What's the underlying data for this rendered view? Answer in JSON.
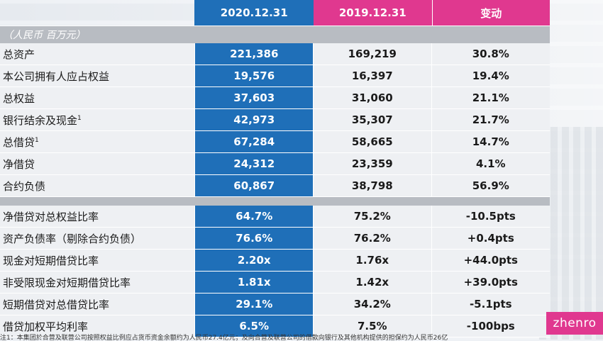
{
  "header": {
    "col_2020": "2020.12.31",
    "col_2019": "2019.12.31",
    "col_change": "变动"
  },
  "unit_label": "（人民币 百万元）",
  "section1": [
    {
      "label": "总资产",
      "sup": "",
      "v2020": "221,386",
      "v2019": "169,219",
      "change": "30.8%"
    },
    {
      "label": "本公司拥有人应占权益",
      "sup": "",
      "v2020": "19,576",
      "v2019": "16,397",
      "change": "19.4%"
    },
    {
      "label": "总权益",
      "sup": "",
      "v2020": "37,603",
      "v2019": "31,060",
      "change": "21.1%"
    },
    {
      "label": "银行结余及现金",
      "sup": "1",
      "v2020": "42,973",
      "v2019": "35,307",
      "change": "21.7%"
    },
    {
      "label": "总借贷",
      "sup": "1",
      "v2020": "67,284",
      "v2019": "58,665",
      "change": "14.7%"
    },
    {
      "label": "净借贷",
      "sup": "",
      "v2020": "24,312",
      "v2019": "23,359",
      "change": "4.1%"
    },
    {
      "label": "合约负债",
      "sup": "",
      "v2020": "60,867",
      "v2019": "38,798",
      "change": "56.9%"
    }
  ],
  "section2": [
    {
      "label": "净借贷对总权益比率",
      "v2020": "64.7%",
      "v2019": "75.2%",
      "change": "-10.5pts"
    },
    {
      "label": "资产负债率（剔除合约负债）",
      "v2020": "76.6%",
      "v2019": "76.2%",
      "change": "+0.4pts"
    },
    {
      "label": "现金对短期借贷比率",
      "v2020": "2.20x",
      "v2019": "1.76x",
      "change": "+44.0pts"
    },
    {
      "label": "非受限现金对短期借贷比率",
      "v2020": "1.81x",
      "v2019": "1.42x",
      "change": "+39.0pts"
    },
    {
      "label": "短期借贷对总借贷比率",
      "v2020": "29.1%",
      "v2019": "34.2%",
      "change": "-5.1pts"
    },
    {
      "label": "借贷加权平均利率",
      "v2020": "6.5%",
      "v2019": "7.5%",
      "change": "-100bps"
    }
  ],
  "footnote": "注1：本集团於合营及联营公司按照权益比例应占货币资金余额约为人民币27.4亿元；及向合营及联营公司的借款向银行及其他机构提供的担保约为人民币26亿",
  "logo_text": "zhenro",
  "colors": {
    "blue": "#1f6fb8",
    "pink": "#e0388f",
    "gray_band": "#b8bcc2"
  }
}
